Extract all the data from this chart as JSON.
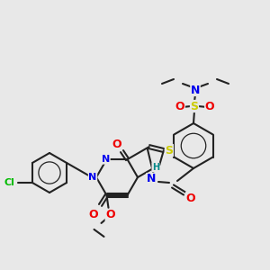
{
  "bg_color": "#e8e8e8",
  "bond_color": "#222222",
  "colors": {
    "N": "#0000ee",
    "O": "#ee0000",
    "S": "#cccc00",
    "Cl": "#00bb00",
    "H": "#008888",
    "C": "#222222"
  },
  "lw": 1.5,
  "fs": 7.5
}
